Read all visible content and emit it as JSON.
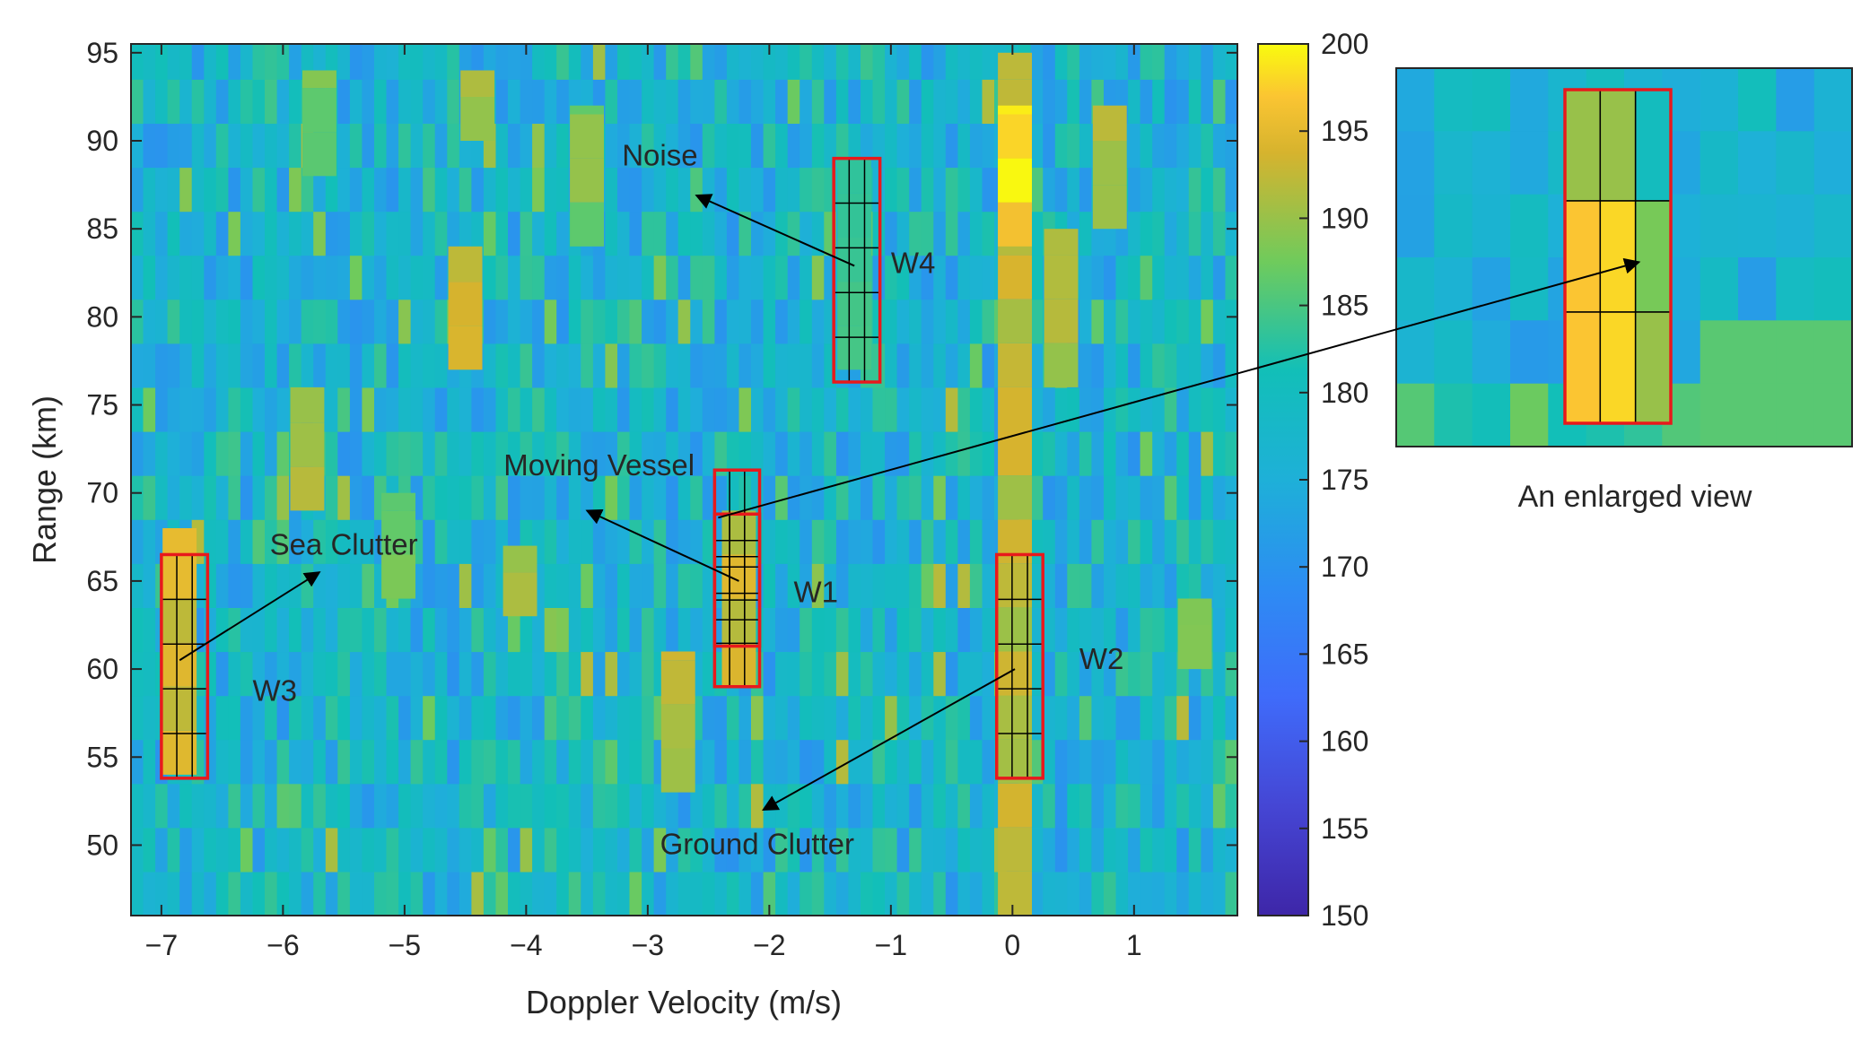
{
  "chart_data": {
    "type": "heatmap",
    "xlabel": "Doppler Velocity (m/s)",
    "ylabel": "Range (km)",
    "xlim": [
      -7.25,
      1.85
    ],
    "ylim": [
      46,
      95.5
    ],
    "x_ticks": [
      -7,
      -6,
      -5,
      -4,
      -3,
      -2,
      -1,
      0,
      1
    ],
    "x_tick_labels": [
      "−7",
      "−6",
      "−5",
      "−4",
      "−3",
      "−2",
      "−1",
      "0",
      "1"
    ],
    "y_ticks": [
      50,
      55,
      60,
      65,
      70,
      75,
      80,
      85,
      90,
      95
    ],
    "y_tick_labels": [
      "50",
      "55",
      "60",
      "65",
      "70",
      "75",
      "80",
      "85",
      "90",
      "95"
    ],
    "colorbar": {
      "range": [
        150,
        200
      ],
      "ticks": [
        150,
        155,
        160,
        165,
        170,
        175,
        180,
        185,
        190,
        195,
        200
      ],
      "tick_labels": [
        "150",
        "155",
        "160",
        "165",
        "170",
        "175",
        "180",
        "185",
        "190",
        "195",
        "200"
      ],
      "colormap": "parula"
    },
    "background_level": 177,
    "hot_spots": [
      {
        "x": 0.02,
        "y0": 46,
        "y1": 95,
        "value": 194
      },
      {
        "x": 0.02,
        "y0": 84,
        "y1": 92,
        "value": 200
      },
      {
        "x": -6.85,
        "y0": 54,
        "y1": 68,
        "value": 196
      },
      {
        "x": -2.25,
        "y0": 59,
        "y1": 69,
        "value": 195
      },
      {
        "x": -1.3,
        "y0": 77,
        "y1": 89,
        "value": 186
      },
      {
        "x": -4.5,
        "y0": 77,
        "y1": 84,
        "value": 195
      },
      {
        "x": -5.8,
        "y0": 69,
        "y1": 76,
        "value": 192
      },
      {
        "x": -5.05,
        "y0": 64,
        "y1": 70,
        "value": 190
      },
      {
        "x": -3.5,
        "y0": 84,
        "y1": 92,
        "value": 190
      },
      {
        "x": -4.05,
        "y0": 63,
        "y1": 67,
        "value": 192
      },
      {
        "x": -2.75,
        "y0": 53,
        "y1": 61,
        "value": 194
      },
      {
        "x": -4.4,
        "y0": 90,
        "y1": 94,
        "value": 192
      },
      {
        "x": -5.7,
        "y0": 88,
        "y1": 94,
        "value": 190
      },
      {
        "x": 0.8,
        "y0": 85,
        "y1": 92,
        "value": 193
      },
      {
        "x": 0.4,
        "y0": 76,
        "y1": 85,
        "value": 192
      },
      {
        "x": 1.5,
        "y0": 60,
        "y1": 64,
        "value": 190
      }
    ],
    "windows": [
      {
        "name": "W1",
        "x0": -2.45,
        "x1": -2.08,
        "y0": 59,
        "y1": 71.3
      },
      {
        "name": "W1-inner",
        "x0": -2.45,
        "x1": -2.08,
        "y0": 61.3,
        "y1": 68.8
      },
      {
        "name": "W2",
        "x0": -0.13,
        "x1": 0.25,
        "y0": 53.8,
        "y1": 66.5
      },
      {
        "name": "W3",
        "x0": -7.0,
        "x1": -6.62,
        "y0": 53.8,
        "y1": 66.5
      },
      {
        "name": "W4",
        "x0": -1.47,
        "x1": -1.09,
        "y0": 76.3,
        "y1": 89
      }
    ],
    "annotations": [
      {
        "id": "noise",
        "text": "Noise",
        "x": -2.9,
        "y": 88.6
      },
      {
        "id": "w4",
        "text": "W4",
        "x": -1.0,
        "y": 82.5
      },
      {
        "id": "moving-vessel",
        "text": "Moving Vessel",
        "x": -3.4,
        "y": 71.0
      },
      {
        "id": "sea-clutter",
        "text": "Sea Clutter",
        "x": -5.5,
        "y": 66.5
      },
      {
        "id": "w1",
        "text": "W1",
        "x": -1.8,
        "y": 63.8
      },
      {
        "id": "w3",
        "text": "W3",
        "x": -6.25,
        "y": 58.2
      },
      {
        "id": "w2",
        "text": "W2",
        "x": 0.55,
        "y": 60.0
      },
      {
        "id": "ground-clutter",
        "text": "Ground Clutter",
        "x": -2.1,
        "y": 49.5
      }
    ],
    "arrows": [
      {
        "id": "noise-arrow",
        "from": [
          -1.3,
          82.9
        ],
        "to": [
          -2.6,
          86.9
        ]
      },
      {
        "id": "vessel-arrow",
        "from": [
          -2.25,
          65.0
        ],
        "to": [
          -3.5,
          69.0
        ]
      },
      {
        "id": "sea-clutter-arrow",
        "from": [
          -6.85,
          60.5
        ],
        "to": [
          -5.7,
          65.5
        ]
      },
      {
        "id": "ground-clutter-arrow",
        "from": [
          0.02,
          60.0
        ],
        "to": [
          -2.05,
          52.0
        ]
      }
    ],
    "inset": {
      "caption": "An enlarged view",
      "source_window": "W1"
    }
  }
}
